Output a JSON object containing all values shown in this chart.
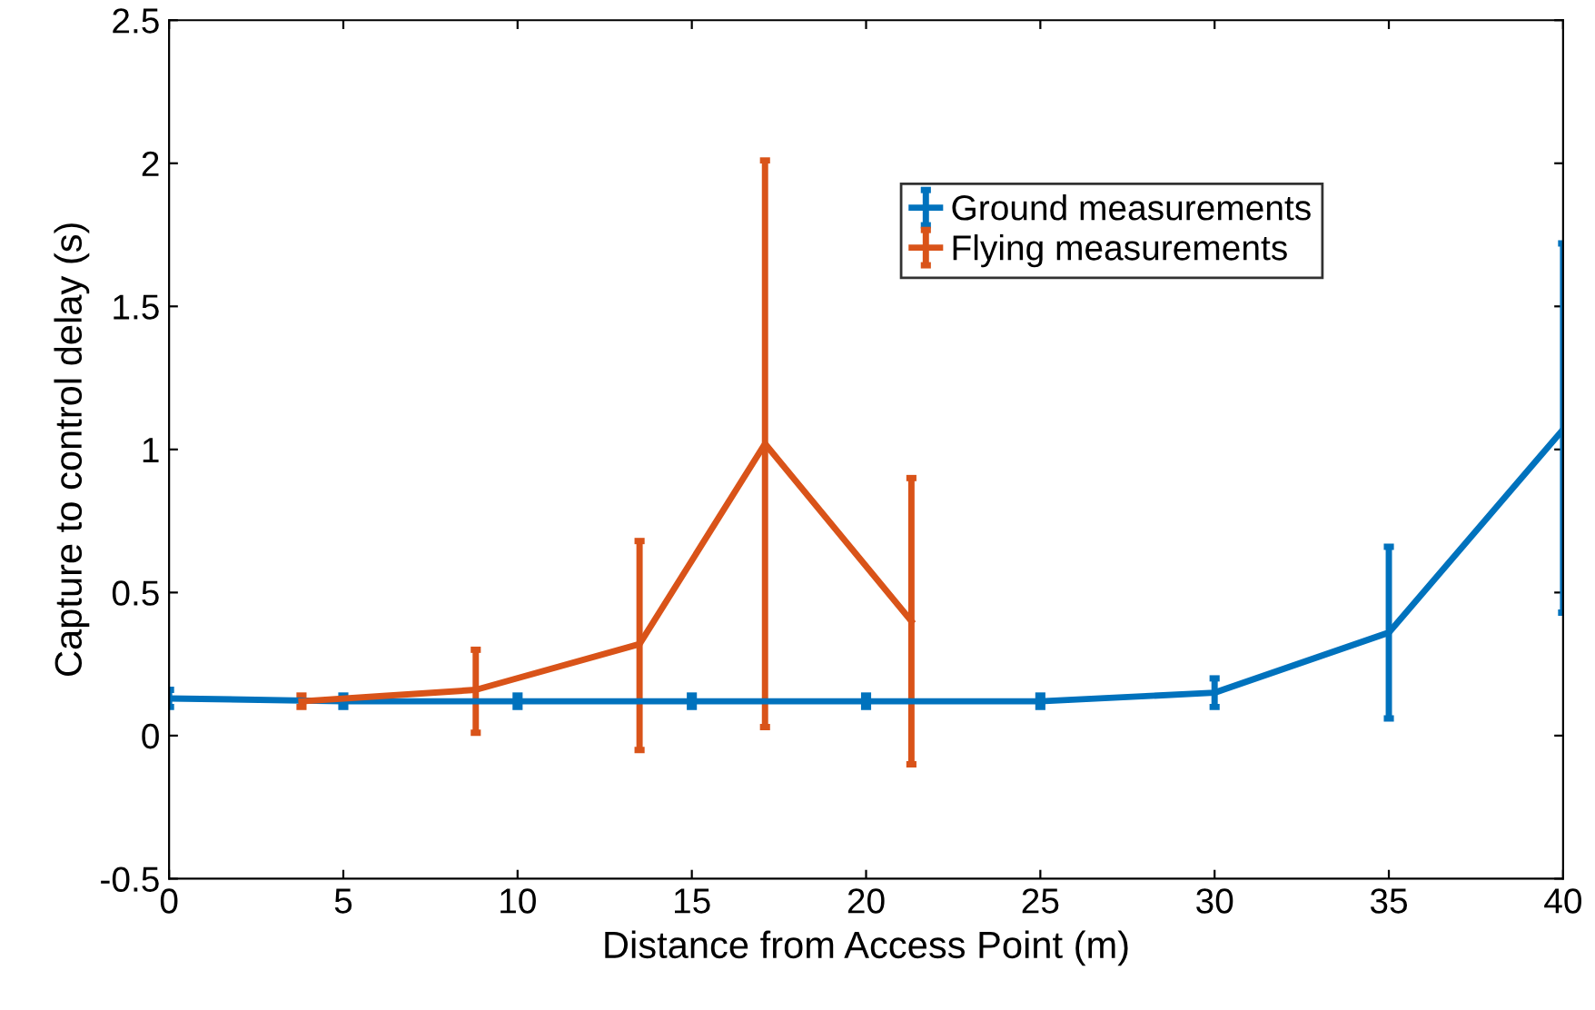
{
  "chart_data": {
    "type": "line",
    "xlabel": "Distance from Access Point (m)",
    "ylabel": "Capture to control delay (s)",
    "xlim": [
      0,
      40
    ],
    "xticks": [
      0,
      5,
      10,
      15,
      20,
      25,
      30,
      35,
      40
    ],
    "ylim": [
      -0.5,
      2.5
    ],
    "yticks": [
      -0.5,
      0,
      0.5,
      1,
      1.5,
      2,
      2.5
    ],
    "legend": "top right",
    "grid": false,
    "marker": "none",
    "line_style": "solid",
    "series": [
      {
        "name": "Ground measurements",
        "color": "#0072bd",
        "x": [
          0,
          5,
          10,
          15,
          20,
          25,
          30,
          35,
          40
        ],
        "values": [
          0.13,
          0.12,
          0.12,
          0.12,
          0.12,
          0.12,
          0.15,
          0.36,
          1.07
        ],
        "errors": [
          [
            0.1,
            0.16
          ],
          [
            0.1,
            0.14
          ],
          [
            0.1,
            0.14
          ],
          [
            0.1,
            0.14
          ],
          [
            0.1,
            0.14
          ],
          [
            0.1,
            0.14
          ],
          [
            0.1,
            0.2
          ],
          [
            0.06,
            0.66
          ],
          [
            0.43,
            1.72
          ]
        ]
      },
      {
        "name": "Flying measurements",
        "color": "#d95319",
        "x": [
          3.8,
          8.8,
          13.5,
          17.1,
          21.3
        ],
        "values": [
          0.12,
          0.16,
          0.32,
          1.02,
          0.4
        ],
        "errors": [
          [
            0.1,
            0.14
          ],
          [
            0.01,
            0.3
          ],
          [
            -0.05,
            0.68
          ],
          [
            0.03,
            2.01
          ],
          [
            -0.1,
            0.9
          ]
        ]
      }
    ]
  }
}
